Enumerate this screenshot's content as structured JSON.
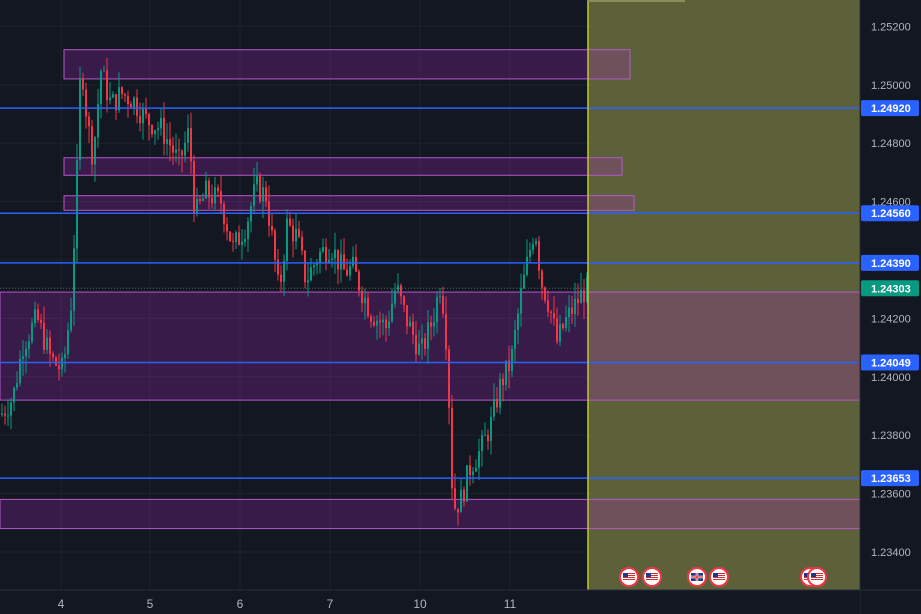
{
  "chart_data": {
    "type": "candlestick",
    "price_axis": {
      "range": [
        1.2328,
        1.2528
      ],
      "ticks": [
        "1.25200",
        "1.25000",
        "1.24800",
        "1.24600",
        "1.24400",
        "1.24200",
        "1.24000",
        "1.23800",
        "1.23600",
        "1.23400"
      ],
      "tick_values": [
        1.252,
        1.25,
        1.248,
        1.246,
        1.244,
        1.242,
        1.24,
        1.238,
        1.236,
        1.234
      ]
    },
    "date_axis": {
      "labels": [
        "4",
        "5",
        "6",
        "7",
        "10",
        "11"
      ]
    },
    "current_price": {
      "value": 1.24303,
      "label": "1.24303",
      "color": "#089981"
    },
    "levels": [
      {
        "value": 1.2492,
        "label": "1.24920"
      },
      {
        "value": 1.2456,
        "label": "1.24560"
      },
      {
        "value": 1.2439,
        "label": "1.24390"
      },
      {
        "value": 1.24049,
        "label": "1.24049"
      },
      {
        "value": 1.23653,
        "label": "1.23653"
      }
    ],
    "zones": [
      {
        "top": 1.2512,
        "bottom": 1.2502,
        "extended": false
      },
      {
        "top": 1.2475,
        "bottom": 1.2469,
        "extended": false
      },
      {
        "top": 1.2462,
        "bottom": 1.2457,
        "extended": false
      },
      {
        "top": 1.2429,
        "bottom": 1.2392,
        "extended": true
      },
      {
        "top": 1.2358,
        "bottom": 1.2348,
        "extended": true
      }
    ],
    "session_marker": {
      "color": "#c0ca33"
    },
    "future_shading": {
      "color": "#6b6f3e"
    },
    "candle_anchors": [
      [
        0,
        1.2387
      ],
      [
        12,
        1.2393
      ],
      [
        22,
        1.2411
      ],
      [
        36,
        1.242
      ],
      [
        50,
        1.2406
      ],
      [
        62,
        1.2402
      ],
      [
        70,
        1.2425
      ],
      [
        75,
        1.246
      ],
      [
        80,
        1.251
      ],
      [
        86,
        1.2488
      ],
      [
        92,
        1.2475
      ],
      [
        100,
        1.2505
      ],
      [
        110,
        1.2493
      ],
      [
        120,
        1.2497
      ],
      [
        132,
        1.2495
      ],
      [
        145,
        1.2488
      ],
      [
        160,
        1.2485
      ],
      [
        170,
        1.2479
      ],
      [
        178,
        1.2473
      ],
      [
        188,
        1.2484
      ],
      [
        194,
        1.2455
      ],
      [
        205,
        1.2463
      ],
      [
        220,
        1.246
      ],
      [
        232,
        1.2444
      ],
      [
        245,
        1.2452
      ],
      [
        255,
        1.2465
      ],
      [
        265,
        1.2462
      ],
      [
        272,
        1.2445
      ],
      [
        278,
        1.2428
      ],
      [
        286,
        1.2452
      ],
      [
        296,
        1.2448
      ],
      [
        305,
        1.2433
      ],
      [
        318,
        1.2442
      ],
      [
        330,
        1.2445
      ],
      [
        342,
        1.2436
      ],
      [
        352,
        1.2437
      ],
      [
        360,
        1.243
      ],
      [
        370,
        1.2422
      ],
      [
        385,
        1.2417
      ],
      [
        395,
        1.2431
      ],
      [
        405,
        1.242
      ],
      [
        420,
        1.2408
      ],
      [
        432,
        1.242
      ],
      [
        440,
        1.2433
      ],
      [
        446,
        1.241
      ],
      [
        452,
        1.2355
      ],
      [
        460,
        1.2358
      ],
      [
        470,
        1.237
      ],
      [
        480,
        1.2375
      ],
      [
        490,
        1.2384
      ],
      [
        500,
        1.2398
      ],
      [
        510,
        1.2405
      ],
      [
        520,
        1.2428
      ],
      [
        528,
        1.2442
      ],
      [
        534,
        1.2452
      ],
      [
        540,
        1.2433
      ],
      [
        548,
        1.2425
      ],
      [
        556,
        1.2412
      ],
      [
        566,
        1.242
      ],
      [
        575,
        1.2425
      ],
      [
        582,
        1.2429
      ],
      [
        588,
        1.24303
      ]
    ],
    "events": [
      {
        "icon": "us-flag-icon"
      },
      {
        "icon": "us-flag-icon"
      },
      {
        "icon": "gb-flag-icon"
      },
      {
        "icon": "us-flag-icon"
      },
      {
        "icon": "us-flag-icon"
      },
      {
        "icon": "us-flag-icon"
      }
    ],
    "colors": {
      "up": "#089981",
      "down": "#f23645",
      "level_line": "#2962ff",
      "zone_fill": "#9c27b0",
      "zone_border": "#b558c9",
      "background": "#131722",
      "grid": "#1e222d"
    }
  }
}
